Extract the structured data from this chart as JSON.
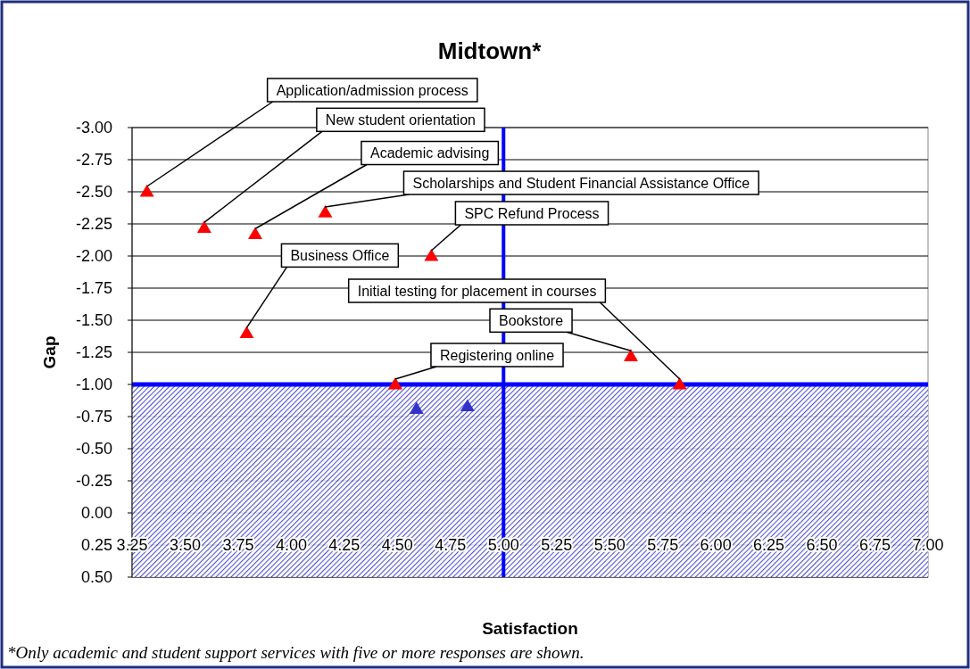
{
  "chart_data": {
    "type": "scatter",
    "title": "Midtown*",
    "xlabel": "Satisfaction",
    "ylabel": "Gap",
    "xlim": [
      3.25,
      7.0
    ],
    "ylim": [
      0.5,
      -3.0
    ],
    "xticks": [
      {
        "value": 3.25,
        "label": "3.25"
      },
      {
        "value": 3.5,
        "label": "3.50"
      },
      {
        "value": 3.75,
        "label": "3.75"
      },
      {
        "value": 4.0,
        "label": "4.00"
      },
      {
        "value": 4.25,
        "label": "4.25"
      },
      {
        "value": 4.5,
        "label": "4.50"
      },
      {
        "value": 4.75,
        "label": "4.75"
      },
      {
        "value": 5.0,
        "label": "5.00"
      },
      {
        "value": 5.25,
        "label": "5.25"
      },
      {
        "value": 5.5,
        "label": "5.50"
      },
      {
        "value": 5.75,
        "label": "5.75"
      },
      {
        "value": 6.0,
        "label": "6.00"
      },
      {
        "value": 6.25,
        "label": "6.25"
      },
      {
        "value": 6.5,
        "label": "6.50"
      },
      {
        "value": 6.75,
        "label": "6.75"
      },
      {
        "value": 7.0,
        "label": "7.00"
      }
    ],
    "yticks": [
      {
        "value": -3.0,
        "label": "-3.00"
      },
      {
        "value": -2.75,
        "label": "-2.75"
      },
      {
        "value": -2.5,
        "label": "-2.50"
      },
      {
        "value": -2.25,
        "label": "-2.25"
      },
      {
        "value": -2.0,
        "label": "-2.00"
      },
      {
        "value": -1.75,
        "label": "-1.75"
      },
      {
        "value": -1.5,
        "label": "-1.50"
      },
      {
        "value": -1.25,
        "label": "-1.25"
      },
      {
        "value": -1.0,
        "label": "-1.00"
      },
      {
        "value": -0.75,
        "label": "-0.75"
      },
      {
        "value": -0.5,
        "label": "-0.50"
      },
      {
        "value": -0.25,
        "label": "-0.25"
      },
      {
        "value": 0.0,
        "label": "0.00"
      },
      {
        "value": 0.25,
        "label": "0.25"
      },
      {
        "value": 0.5,
        "label": "0.50"
      }
    ],
    "grid": "y",
    "marker": "triangle",
    "series": [
      {
        "color": "#ff0000",
        "x": [
          3.32,
          3.59,
          3.83,
          4.16,
          4.66,
          3.79,
          5.6,
          5.83,
          4.49
        ],
        "values": [
          -2.5,
          -2.22,
          -2.17,
          -2.34,
          -2.0,
          -1.4,
          -1.22,
          -1.0,
          -1.0
        ]
      },
      {
        "color": "#3333cc",
        "x": [
          4.59,
          4.83
        ],
        "values": [
          -0.81,
          -0.83
        ]
      }
    ],
    "ref_lines": [
      {
        "axis": "x",
        "value": 5.0,
        "color": "#0000ff"
      },
      {
        "axis": "y",
        "value": -1.0,
        "color": "#0000ff"
      }
    ],
    "bands": [
      {
        "axis": "y",
        "from": -1.0,
        "to": 0.5,
        "color": "#3333cc"
      }
    ],
    "annotations": [
      {
        "text": "Application/admission process",
        "x": 3.32,
        "y": -2.5
      },
      {
        "text": "New student orientation",
        "x": 3.59,
        "y": -2.22
      },
      {
        "text": "Academic advising",
        "x": 3.83,
        "y": -2.17
      },
      {
        "text": "Scholarships and Student Financial Assistance Office",
        "x": 4.16,
        "y": -2.34
      },
      {
        "text": "SPC Refund Process",
        "x": 4.66,
        "y": -2.0
      },
      {
        "text": "Business Office",
        "x": 3.79,
        "y": -1.4
      },
      {
        "text": "Bookstore",
        "x": 5.6,
        "y": -1.22
      },
      {
        "text": "Initial testing for placement in courses",
        "x": 5.83,
        "y": -1.0
      },
      {
        "text": "Registering online",
        "x": 4.49,
        "y": -1.0
      },
      "*Only academic and student support services with five or more responses are shown."
    ]
  }
}
